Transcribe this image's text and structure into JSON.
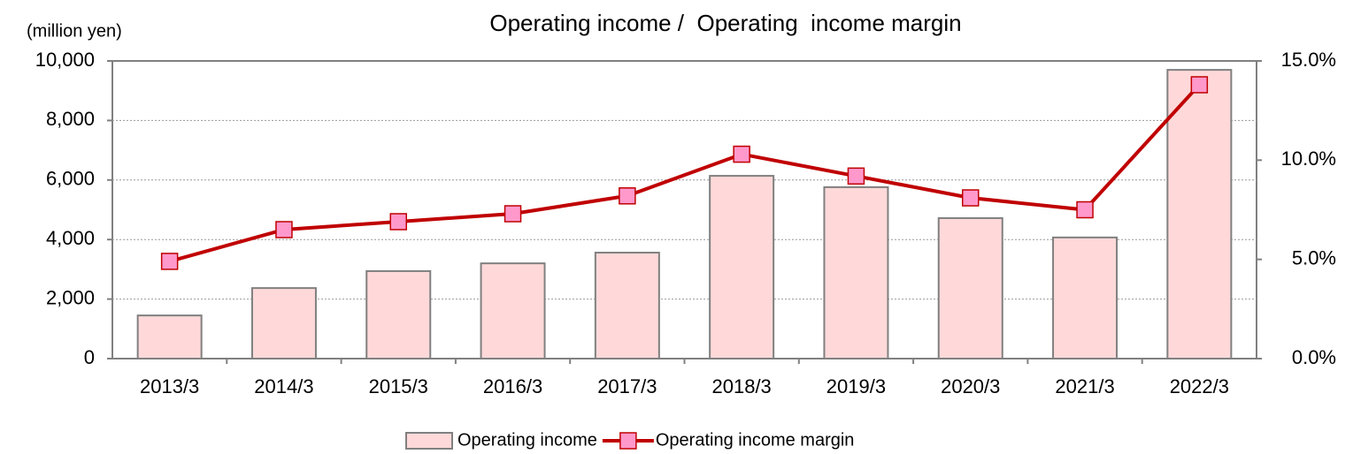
{
  "chart_data": {
    "type": "combo",
    "title": "Operating income /  Operating  income margin",
    "ylabel": "(million yen)",
    "categories": [
      "2013/3",
      "2014/3",
      "2015/3",
      "2016/3",
      "2017/3",
      "2018/3",
      "2019/3",
      "2020/3",
      "2021/3",
      "2022/3"
    ],
    "series": [
      {
        "name": "Operating income",
        "type": "bar",
        "color": "#ffd9d9",
        "edgecolor": "#808080",
        "values": [
          1450,
          2370,
          2940,
          3200,
          3560,
          6140,
          5760,
          4720,
          4070,
          9700
        ]
      },
      {
        "name": "Operating income margin",
        "type": "line",
        "axis": "y2",
        "color": "#c00000",
        "marker_color": "#ff99cc",
        "values": [
          4.9,
          6.5,
          6.9,
          7.3,
          8.2,
          10.3,
          9.2,
          8.1,
          7.5,
          13.8
        ]
      }
    ],
    "ylim": [
      0,
      10000
    ],
    "yticks": [
      0,
      {
        "value": 2000,
        "label": "2,000"
      },
      {
        "value": 4000,
        "label": "4,000"
      },
      {
        "value": 6000,
        "label": "6,000"
      },
      {
        "value": 8000,
        "label": "8,000"
      },
      {
        "value": 10000,
        "label": "10,000"
      }
    ],
    "y2lim": [
      0,
      15
    ],
    "y2ticks": [
      {
        "value": 0,
        "label": "0.0%"
      },
      {
        "value": 5,
        "label": "5.0%"
      },
      {
        "value": 10,
        "label": "10.0%"
      },
      {
        "value": 15,
        "label": "15.0%"
      }
    ],
    "grid": true,
    "legend": "bottom"
  }
}
